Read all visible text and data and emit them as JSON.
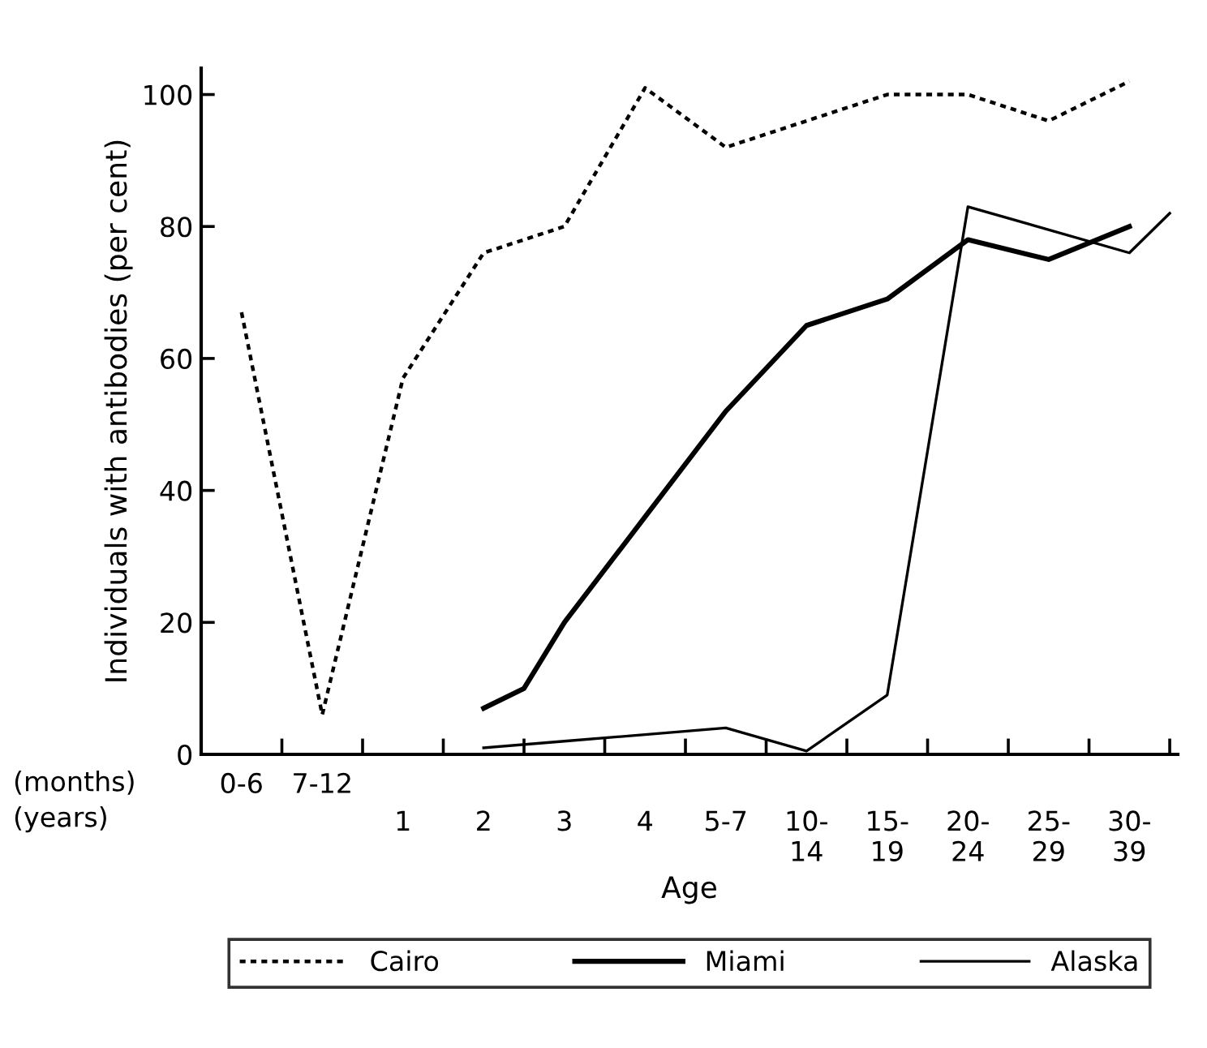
{
  "chart_data": {
    "type": "line",
    "ylabel": "Individuals with antibodies (per cent)",
    "xlabel": "Age",
    "ylim": [
      0,
      104
    ],
    "yticks": [
      0,
      20,
      40,
      60,
      80,
      100
    ],
    "categories": [
      "0-6",
      null,
      "7-12",
      null,
      "1",
      null,
      "2",
      null,
      "3",
      null,
      "4",
      null,
      "5-7",
      null,
      "10-\n14",
      null,
      "15-\n19",
      null,
      "20-\n24",
      null,
      "25-\n29",
      null,
      "30-\n39",
      null
    ],
    "annotations": [
      "(months)",
      "(years)"
    ],
    "legend": "bottom",
    "grid": false,
    "series": [
      {
        "name": "Cairo",
        "color": "#000000",
        "line_style": "dashed",
        "values": [
          67,
          null,
          6,
          null,
          57,
          null,
          76,
          null,
          80,
          null,
          101,
          null,
          92,
          null,
          96,
          null,
          100,
          null,
          100,
          null,
          96,
          null,
          102,
          null
        ]
      },
      {
        "name": "Miami",
        "color": "#000000",
        "line_style": "solid",
        "values": [
          null,
          null,
          null,
          null,
          null,
          null,
          7,
          10,
          20,
          null,
          36,
          null,
          52,
          null,
          65,
          null,
          69,
          null,
          78,
          null,
          75,
          null,
          80,
          null
        ]
      },
      {
        "name": "Alaska",
        "color": "#000000",
        "line_style": "solid",
        "values": [
          null,
          null,
          null,
          null,
          null,
          null,
          1,
          null,
          2,
          null,
          3,
          null,
          4,
          null,
          0.5,
          null,
          9,
          null,
          83,
          null,
          null,
          null,
          76,
          82
        ]
      }
    ]
  }
}
